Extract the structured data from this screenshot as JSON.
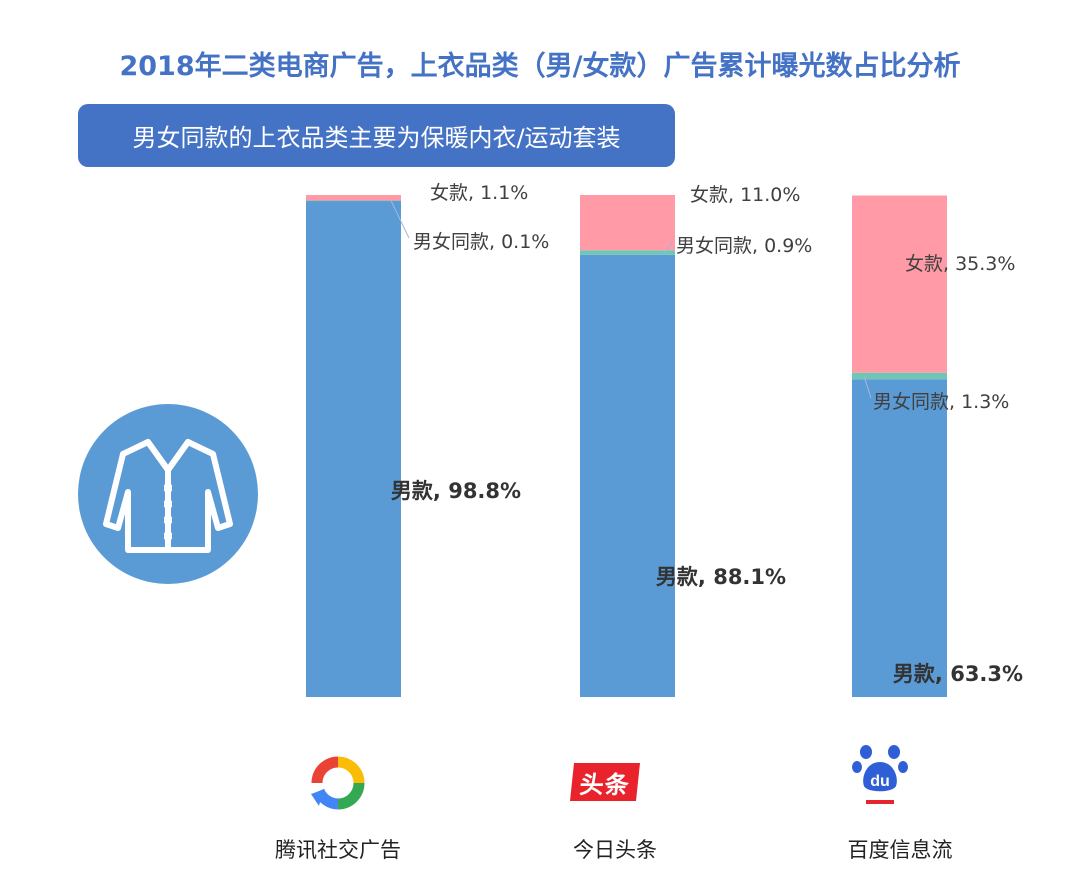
{
  "title": "2018年二类电商广告，上衣品类（男/女款）广告累计曝光数占比分析",
  "subtitle": "男女同款的上衣品类主要为保暖内衣/运动套装",
  "colors": {
    "male": "#5b9bd5",
    "unisex": "#70c6b4",
    "female": "#ff9aa6",
    "title": "#4472c4",
    "subtitle_bg": "#4472c4"
  },
  "icons": [
    "jacket-icon",
    "tencent-social-ads-logo",
    "toutiao-logo",
    "baidu-paw-logo"
  ],
  "chart_data": {
    "type": "bar",
    "stacked": true,
    "orientation": "vertical",
    "categories": [
      "腾讯社交广告",
      "今日头条",
      "百度信息流"
    ],
    "series": [
      {
        "name": "男款",
        "values": [
          98.8,
          88.1,
          63.3
        ]
      },
      {
        "name": "男女同款",
        "values": [
          0.1,
          0.9,
          1.3
        ]
      },
      {
        "name": "女款",
        "values": [
          1.1,
          11.0,
          35.3
        ]
      }
    ],
    "labels": {
      "male": [
        "男款, 98.8%",
        "男款, 88.1%",
        "男款, 63.3%"
      ],
      "unisex": [
        "男女同款, 0.1%",
        "男女同款, 0.9%",
        "男女同款, 1.3%"
      ],
      "female": [
        "女款, 1.1%",
        "女款, 11.0%",
        "女款, 35.3%"
      ]
    },
    "ylim": [
      0,
      100
    ],
    "grid": false,
    "legend": "none"
  },
  "platforms": [
    {
      "name": "腾讯社交广告",
      "logo_text": ""
    },
    {
      "name": "今日头条",
      "logo_text": "头条"
    },
    {
      "name": "百度信息流",
      "logo_text": "du"
    }
  ]
}
